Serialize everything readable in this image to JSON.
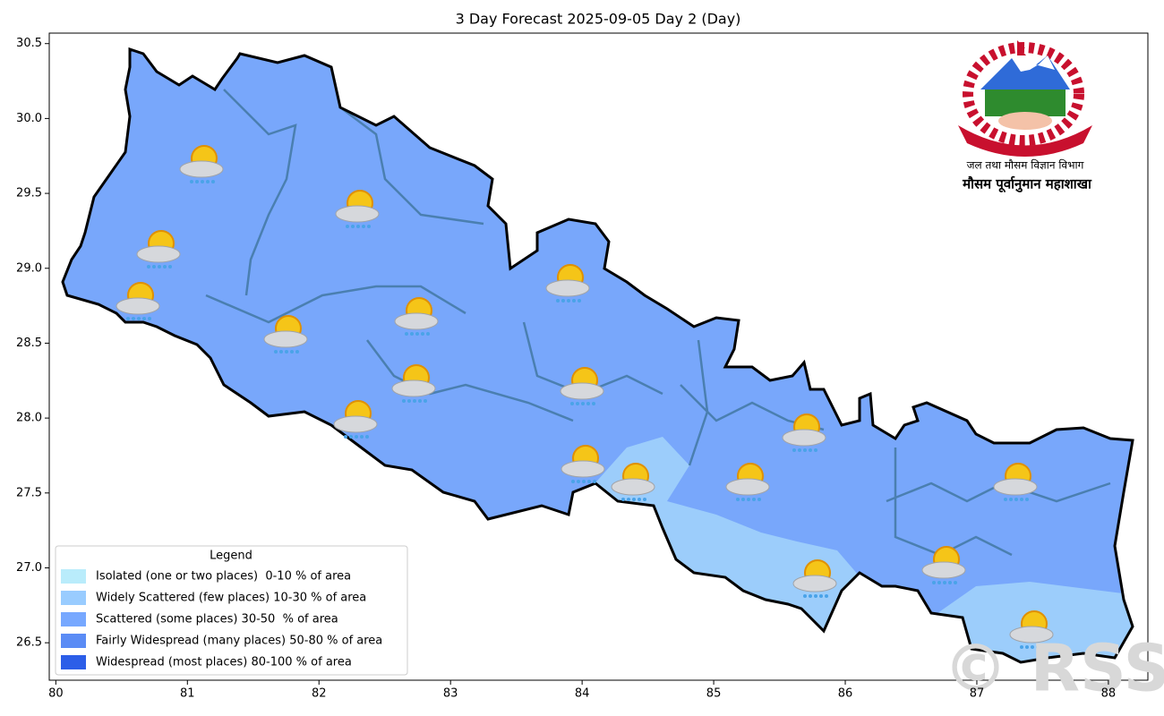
{
  "title": "3 Day Forecast 2025-09-05 Day 2 (Day)",
  "map": {
    "xlim": [
      79.95,
      88.3
    ],
    "ylim": [
      26.25,
      30.57
    ],
    "xticks": [
      80,
      81,
      82,
      83,
      84,
      85,
      86,
      87,
      88
    ],
    "yticks": [
      {
        "value": 26.5,
        "label": "26.5"
      },
      {
        "value": 27,
        "label": "27.0"
      },
      {
        "value": 27.5,
        "label": "27.5"
      },
      {
        "value": 28,
        "label": "28.0"
      },
      {
        "value": 28.5,
        "label": "28.5"
      },
      {
        "value": 29,
        "label": "29.0"
      },
      {
        "value": 29.5,
        "label": "29.5"
      },
      {
        "value": 30,
        "label": "30.0"
      },
      {
        "value": 30.5,
        "label": "30.5"
      }
    ],
    "fill_color": "#78a7fb",
    "light_color": "#9ccdfb"
  },
  "legend": {
    "title": "Legend",
    "items": [
      {
        "label": "Isolated (one or two places)  0-10 % of area",
        "color": "#b9ecfb"
      },
      {
        "label": "Widely Scattered (few places) 10-30 % of area",
        "color": "#99ccff"
      },
      {
        "label": "Scattered (some places) 30-50  % of area",
        "color": "#77a8ff"
      },
      {
        "label": "Fairly Widespread (many places) 50-80 % of area",
        "color": "#5b8cf5"
      },
      {
        "label": "Widespread (most places) 80-100 % of area",
        "color": "#2c5ee8"
      }
    ]
  },
  "logo": {
    "line1": "जल तथा मौसम विज्ञान विभाग",
    "line2": "मौसम पूर्वानुमान महाशाखा"
  },
  "watermark": "© RSS"
}
